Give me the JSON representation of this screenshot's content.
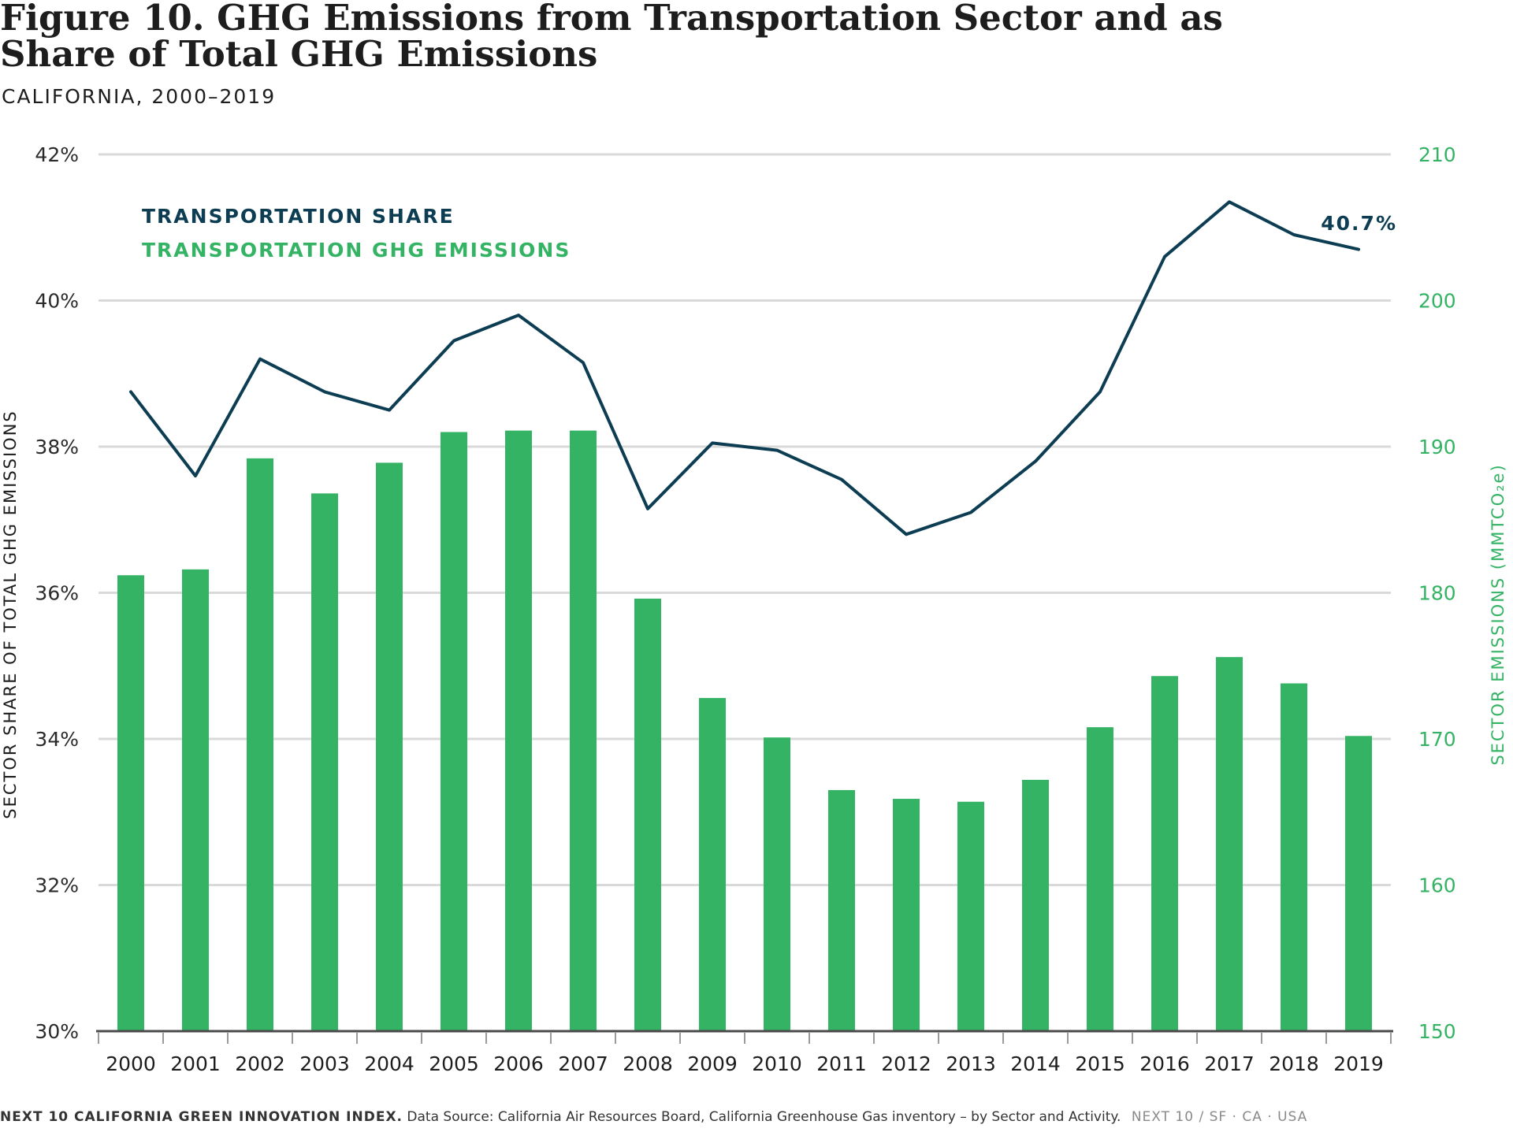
{
  "title": "Figure 10. GHG Emissions from Transportation Sector and as Share of Total GHG Emissions",
  "subtitle": "CALIFORNIA, 2000–2019",
  "legend": {
    "share": "TRANSPORTATION SHARE",
    "emissions": "TRANSPORTATION GHG EMISSIONS"
  },
  "annotation": "40.7%",
  "colors": {
    "share": "#0c3d52",
    "emissions": "#34b364",
    "grid": "#d9d9d9",
    "axis": "#4a4a4a"
  },
  "footer": {
    "brand": "NEXT 10 CALIFORNIA GREEN INNOVATION INDEX.",
    "source": "Data Source: California Air Resources Board, California Greenhouse Gas inventory – by Sector and Activity.",
    "credit": "NEXT 10  /  SF · CA · USA"
  },
  "chart_data": {
    "type": "bar",
    "categories": [
      "2000",
      "2001",
      "2002",
      "2003",
      "2004",
      "2005",
      "2006",
      "2007",
      "2008",
      "2009",
      "2010",
      "2011",
      "2012",
      "2013",
      "2014",
      "2015",
      "2016",
      "2017",
      "2018",
      "2019"
    ],
    "left_axis": {
      "label": "SECTOR SHARE OF TOTAL GHG EMISSIONS",
      "ylim": [
        30,
        42
      ],
      "ticks": [
        "30%",
        "32%",
        "34%",
        "36%",
        "38%",
        "40%",
        "42%"
      ]
    },
    "right_axis": {
      "label": "SECTOR EMISSIONS (MMTCO₂e)",
      "ylim": [
        150,
        210
      ],
      "ticks": [
        "150",
        "160",
        "170",
        "180",
        "190",
        "200",
        "210"
      ]
    },
    "series": [
      {
        "name": "TRANSPORTATION GHG EMISSIONS",
        "type": "bar",
        "axis": "right",
        "values": [
          181.2,
          181.6,
          189.2,
          186.8,
          188.9,
          191.0,
          191.1,
          191.1,
          179.6,
          172.8,
          170.1,
          166.5,
          165.9,
          165.7,
          167.2,
          170.8,
          174.3,
          175.6,
          173.8,
          170.2
        ]
      },
      {
        "name": "TRANSPORTATION SHARE",
        "type": "line",
        "axis": "left",
        "values": [
          38.75,
          37.6,
          39.2,
          38.75,
          38.5,
          39.45,
          39.8,
          39.15,
          37.15,
          38.05,
          37.95,
          37.55,
          36.8,
          37.1,
          37.8,
          38.75,
          40.6,
          41.35,
          40.9,
          40.7
        ]
      }
    ],
    "grid": true,
    "legend_position": "top-left"
  }
}
